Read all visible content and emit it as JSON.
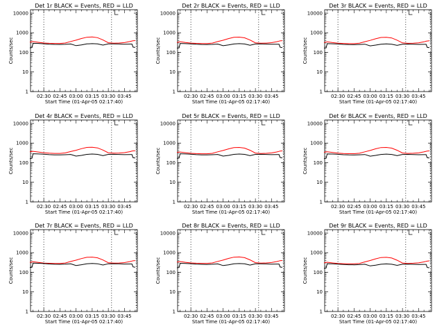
{
  "chart_data": {
    "type": "line",
    "shared": {
      "xlabel": "Start Time (01-Apr-05 02:17:40)",
      "ylabel": "Counts/sec",
      "x_ticks": [
        "02:30",
        "02:45",
        "03:00",
        "03:15",
        "03:30",
        "03:45"
      ],
      "x_range": [
        "02:17:40",
        "03:57:00"
      ],
      "y_scale": "log",
      "ylim": [
        1,
        15000
      ],
      "y_ticks": [
        "1",
        "10",
        "100",
        "1000",
        "10000"
      ],
      "vertical_dotted_lines": [
        "02:30",
        "03:33",
        "03:56"
      ],
      "series_colors": {
        "events": "#000000",
        "lld": "#ff0000"
      },
      "x": [
        "02:17",
        "02:19",
        "02:20",
        "02:25",
        "02:30",
        "02:35",
        "02:40",
        "02:45",
        "02:50",
        "02:55",
        "03:00",
        "03:05",
        "03:10",
        "03:15",
        "03:20",
        "03:25",
        "03:30",
        "03:35",
        "03:40",
        "03:45",
        "03:50",
        "03:52",
        "03:53",
        "03:55"
      ]
    },
    "panels": [
      {
        "title": "Det 1r BLACK = Events, RED = LLD",
        "events": [
          170,
          175,
          290,
          285,
          275,
          262,
          255,
          252,
          258,
          268,
          220,
          240,
          270,
          280,
          270,
          235,
          270,
          272,
          268,
          262,
          265,
          265,
          185,
          178
        ],
        "lld": [
          330,
          350,
          355,
          325,
          300,
          290,
          285,
          285,
          300,
          360,
          420,
          510,
          590,
          610,
          560,
          430,
          310,
          295,
          300,
          315,
          355,
          380,
          390,
          400
        ]
      },
      {
        "title": "Det 2r BLACK = Events, RED = LLD",
        "events": [
          165,
          170,
          285,
          280,
          272,
          260,
          252,
          250,
          255,
          265,
          218,
          238,
          268,
          278,
          268,
          232,
          268,
          270,
          265,
          260,
          262,
          262,
          182,
          175
        ],
        "lld": [
          320,
          340,
          350,
          320,
          298,
          288,
          283,
          283,
          298,
          355,
          415,
          505,
          585,
          600,
          555,
          425,
          308,
          292,
          298,
          312,
          350,
          375,
          385,
          395
        ]
      },
      {
        "title": "Det 3r BLACK = Events, RED = LLD",
        "events": [
          165,
          170,
          280,
          275,
          268,
          256,
          248,
          246,
          252,
          262,
          215,
          235,
          262,
          272,
          262,
          228,
          262,
          265,
          260,
          255,
          258,
          258,
          180,
          172
        ],
        "lld": [
          315,
          335,
          345,
          315,
          295,
          285,
          280,
          280,
          295,
          350,
          410,
          495,
          575,
          590,
          545,
          420,
          305,
          290,
          295,
          308,
          345,
          370,
          380,
          390
        ]
      },
      {
        "title": "Det 4r BLACK = Events, RED = LLD",
        "events": [
          160,
          168,
          285,
          280,
          270,
          258,
          250,
          248,
          254,
          264,
          216,
          236,
          266,
          276,
          266,
          230,
          266,
          268,
          264,
          258,
          260,
          260,
          180,
          172
        ],
        "lld": [
          360,
          375,
          380,
          350,
          320,
          305,
          298,
          298,
          315,
          370,
          430,
          520,
          600,
          615,
          565,
          440,
          320,
          305,
          310,
          325,
          365,
          390,
          400,
          410
        ]
      },
      {
        "title": "Det 5r BLACK = Events, RED = LLD",
        "events": [
          165,
          172,
          285,
          280,
          270,
          258,
          250,
          248,
          254,
          264,
          216,
          236,
          266,
          276,
          266,
          230,
          266,
          268,
          264,
          258,
          260,
          260,
          182,
          175
        ],
        "lld": [
          330,
          345,
          350,
          322,
          300,
          290,
          285,
          285,
          300,
          358,
          418,
          505,
          585,
          600,
          552,
          428,
          310,
          295,
          300,
          315,
          352,
          378,
          388,
          398
        ]
      },
      {
        "title": "Det 6r BLACK = Events, RED = LLD",
        "events": [
          160,
          168,
          280,
          276,
          268,
          256,
          248,
          246,
          252,
          262,
          215,
          235,
          264,
          274,
          264,
          228,
          264,
          266,
          262,
          256,
          258,
          258,
          180,
          172
        ],
        "lld": [
          340,
          355,
          360,
          330,
          305,
          292,
          287,
          287,
          302,
          360,
          420,
          508,
          588,
          602,
          555,
          430,
          312,
          297,
          302,
          316,
          355,
          380,
          390,
          400
        ]
      },
      {
        "title": "Det 7r BLACK = Events, RED = LLD",
        "events": [
          175,
          180,
          292,
          288,
          278,
          265,
          257,
          254,
          260,
          270,
          222,
          242,
          272,
          282,
          272,
          236,
          272,
          274,
          270,
          264,
          266,
          266,
          188,
          180
        ],
        "lld": [
          320,
          338,
          345,
          318,
          296,
          287,
          282,
          282,
          297,
          355,
          415,
          500,
          580,
          595,
          550,
          425,
          308,
          293,
          298,
          312,
          350,
          375,
          385,
          395
        ]
      },
      {
        "title": "Det 8r BLACK = Events, RED = LLD",
        "events": [
          170,
          176,
          288,
          284,
          274,
          262,
          254,
          251,
          257,
          267,
          220,
          240,
          270,
          280,
          270,
          234,
          270,
          272,
          268,
          262,
          264,
          264,
          185,
          178
        ],
        "lld": [
          330,
          348,
          352,
          324,
          300,
          290,
          285,
          285,
          300,
          358,
          420,
          508,
          590,
          605,
          558,
          430,
          310,
          295,
          300,
          315,
          352,
          378,
          388,
          398
        ]
      },
      {
        "title": "Det 9r BLACK = Events, RED = LLD",
        "events": [
          160,
          166,
          275,
          270,
          262,
          250,
          243,
          241,
          247,
          257,
          212,
          232,
          258,
          268,
          258,
          225,
          258,
          260,
          256,
          250,
          252,
          252,
          176,
          170
        ],
        "lld": [
          300,
          318,
          325,
          300,
          282,
          274,
          270,
          270,
          284,
          340,
          400,
          485,
          565,
          580,
          535,
          412,
          298,
          284,
          290,
          303,
          338,
          362,
          372,
          382
        ]
      }
    ]
  }
}
